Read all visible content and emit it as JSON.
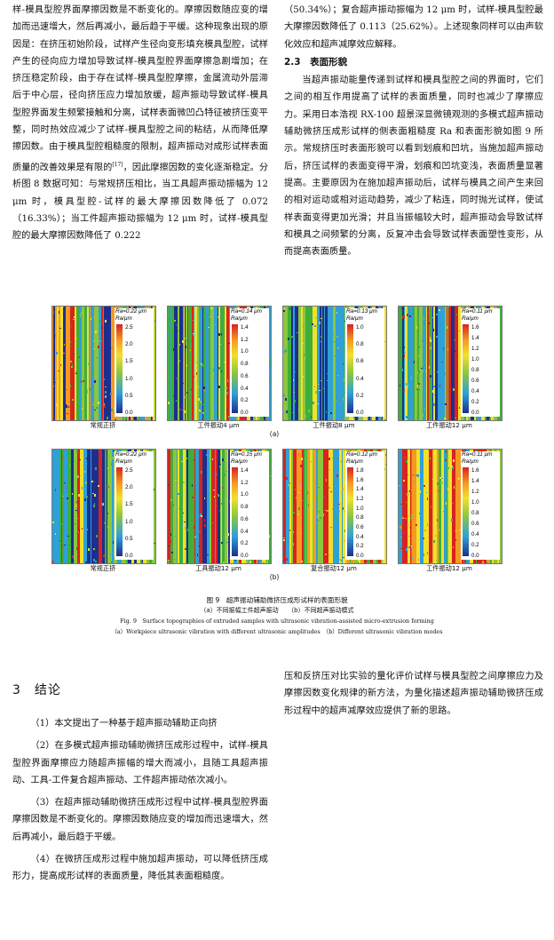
{
  "top_left": [
    "样-模具型腔界面摩擦因数是不断变化的。摩擦因数随应变的增加而迅速增大，然后再减小，最后趋于平缓。这种现象出现的原因是：在挤压初始阶段，试样产生径向变形填充模具型腔，试样产生的径向应力增加导致试样-模具型腔界面摩擦急剧增加；在挤压稳定阶段，由于存在试样-模具型腔摩擦，金属流动外层滞后于中心层，径向挤压应力增加放缓，超声振动导致试样-模具型腔界面发生频繁接触和分离，试样表面微凹凸特征被挤压变平整，同时热效应减少了试样-模具型腔之间的粘结，从而降低摩擦因数。由于模具型腔粗糙度的限制，超声振动对成形试样表面质量的改善效果是有限的",
    "[17]",
    "，因此摩擦因数的变化逐渐稳定。分析图 8 数据可知：与常规挤压相比，当工具超声振动振幅为 12 μm 时，模具型腔-试样的最大摩擦因数降低了 0.072（16.33%）；当工件超声振动振幅为 12 μm 时，试样-模具型腔的最大摩擦因数降低了 0.222"
  ],
  "top_right": {
    "para1": "（50.34%）；复合超声振动振幅为 12 μm 时，试样-模具型腔最大摩擦因数降低了 0.113（25.62%）。上述现象同样可以由声软化效应和超声减摩效应解释。",
    "section_heading": "2.3　表面形貌",
    "para2": "当超声振动能量传递到试样和模具型腔之间的界面时，它们之间的相互作用提高了试样的表面质量，同时也减少了摩擦应力。采用日本浩视 RX-100 超景深显微镜观测的多模式超声振动辅助微挤压成形试样的侧表面粗糙度 Ra 和表面形貌如图 9 所示。常规挤压时表面形貌可以看到划痕和凹坑，当施加超声振动后，挤压试样的表面变得平滑，划痕和凹坑变浅，表面质量显著提高。主要原因为在施加超声振动后，试样与模具之间产生来回的相对运动或相对运动趋势，减少了粘连，同时抛光试样，使试样表面变得更加光滑；并且当振幅较大时，超声振动会导致试样和模具之间频繁的分离，反复冲击会导致试样表面塑性变形，从而提高表面质量。"
  },
  "figure": {
    "unit_label": "Ra/μm",
    "row_a": {
      "label": "(a)",
      "panels": [
        {
          "ra": "Ra=0.22 μm",
          "caption": "常规正挤",
          "ticks": [
            "2.5",
            "2.0",
            "1.5",
            "1.0",
            "0.5",
            "0.0"
          ],
          "palette": [
            "#3fae3a",
            "#8cc63e",
            "#f2e12b",
            "#2fa0d8",
            "#1c2f8f",
            "#d8231f",
            "#f59a23"
          ],
          "seed": 3
        },
        {
          "ra": "Ra=0.14 μm",
          "caption": "工件振动4 μm",
          "ticks": [
            "1.4",
            "1.2",
            "1.0",
            "0.8",
            "0.6",
            "0.4",
            "0.2",
            "0.0"
          ],
          "palette": [
            "#3fae3a",
            "#8cc63e",
            "#2fa0d8",
            "#1c2f8f",
            "#f2e12b",
            "#d8231f"
          ],
          "seed": 7
        },
        {
          "ra": "Ra=0.13 μm",
          "caption": "工件振动8 μm",
          "ticks": [
            "1.0",
            "0.8",
            "0.6",
            "0.4",
            "0.2",
            "0.0"
          ],
          "palette": [
            "#3fae3a",
            "#8cc63e",
            "#f2e12b",
            "#2fa0d8",
            "#1c2f8f"
          ],
          "seed": 11
        },
        {
          "ra": "Ra=0.11 μm",
          "caption": "工件振动12 μm",
          "ticks": [
            "1.6",
            "1.4",
            "1.2",
            "1.0",
            "0.8",
            "0.6",
            "0.4",
            "0.2",
            "0.0"
          ],
          "palette": [
            "#3fae3a",
            "#8cc63e",
            "#2fa0d8",
            "#f2e12b",
            "#d8231f",
            "#1c2f8f"
          ],
          "seed": 17
        }
      ]
    },
    "row_b": {
      "label": "(b)",
      "panels": [
        {
          "ra": "Ra=0.22 μm",
          "caption": "常规正挤",
          "ticks": [
            "2.5",
            "2.0",
            "1.5",
            "1.0",
            "0.5",
            "0.0"
          ],
          "palette": [
            "#3fae3a",
            "#8cc63e",
            "#f2e12b",
            "#2fa0d8",
            "#1c2f8f",
            "#d8231f"
          ],
          "seed": 5
        },
        {
          "ra": "Ra=0.15 μm",
          "caption": "工具振动12 μm",
          "ticks": [
            "1.4",
            "1.2",
            "1.0",
            "0.8",
            "0.6",
            "0.4",
            "0.2",
            "0.0"
          ],
          "palette": [
            "#3fae3a",
            "#8cc63e",
            "#2fa0d8",
            "#1c2f8f",
            "#f2e12b",
            "#d8231f"
          ],
          "seed": 13
        },
        {
          "ra": "Ra=0.12 μm",
          "caption": "复合振动12 μm",
          "ticks": [
            "1.8",
            "1.6",
            "1.4",
            "1.2",
            "1.0",
            "0.8",
            "0.6",
            "0.4",
            "0.2",
            "0.0"
          ],
          "palette": [
            "#3fae3a",
            "#8cc63e",
            "#f2e12b",
            "#d8231f",
            "#2fa0d8",
            "#f59a23"
          ],
          "seed": 19
        },
        {
          "ra": "Ra=0.11 μm",
          "caption": "工件振动12 μm",
          "ticks": [
            "1.6",
            "1.4",
            "1.2",
            "1.0",
            "0.8",
            "0.6",
            "0.4",
            "0.2",
            "0.0"
          ],
          "palette": [
            "#3fae3a",
            "#8cc63e",
            "#f2e12b",
            "#d8231f",
            "#f59a23",
            "#2fa0d8"
          ],
          "seed": 23
        }
      ]
    },
    "caption_cn": "图 9　超声振动辅助微挤压成形试样的表面形貌",
    "caption_cn_sub": "（a）不同振幅工件超声振动　　（b）不同超声振动模式",
    "caption_en": "Fig. 9　Surface topographies of extruded samples with ultrasonic vibration-assisted micro-extrusion forming",
    "caption_en_sub": "（a）Workpiece ultrasonic vibration with different ultrasonic amplitudes　（b）Different ultrasonic vibration modes"
  },
  "conclusion": {
    "title": "3　结论",
    "items": [
      "（1）本文提出了一种基于超声振动辅助正向挤",
      "（2）在多模式超声振动辅助微挤压成形过程中，试样-模具型腔界面摩擦应力随超声振幅的增大而减小，且随工具超声振动、工具-工件复合超声振动、工件超声振动依次减小。",
      "（3）在超声振动辅助微挤压成形过程中试样-模具型腔界面摩擦因数是不断变化的。摩擦因数随应变的增加而迅速增大，然后再减小，最后趋于平缓。",
      "（4）在微挤压成形过程中施加超声振动，可以降低挤压成形力，提高成形试样的表面质量，降低其表面粗糙度。"
    ],
    "right_col": "压和反挤压对比实验的量化评价试样与模具型腔之间摩擦应力及摩擦因数变化规律的新方法，为量化描述超声振动辅助微挤压成形过程中的超声减摩效应提供了新的思路。"
  }
}
